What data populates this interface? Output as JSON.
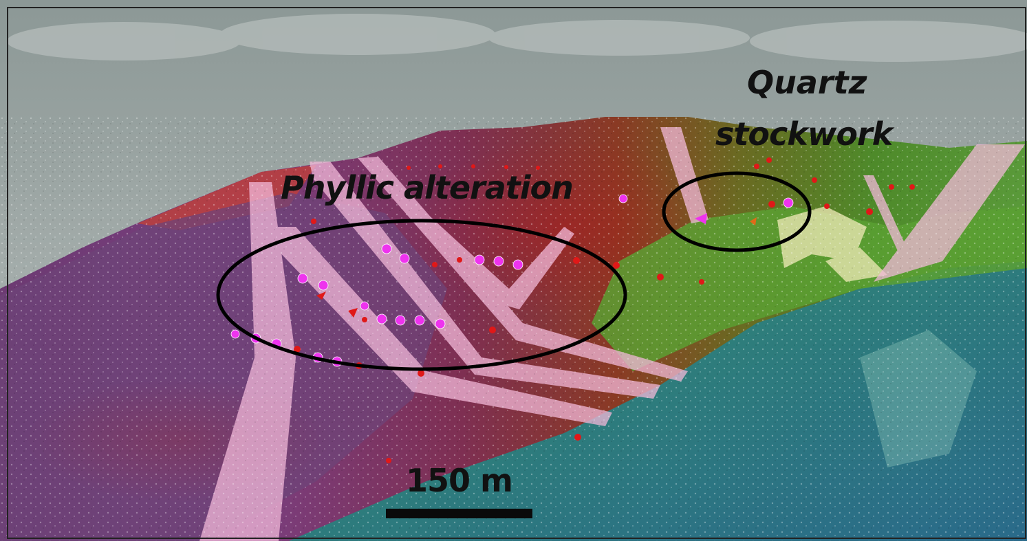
{
  "labels": {
    "phyllic": "Phyllic alteration",
    "quartz_line1": "Quartz",
    "quartz_line2": "stockwork"
  },
  "scale": {
    "text": "150 m"
  },
  "colors": {
    "sky": "#9aa4a2",
    "phyllic_zone": "#7a3a7e",
    "ridge": "#8b1e1e",
    "slope_green": "#5a9a2a",
    "valley_teal": "#2f7f86",
    "veins": "#f2b8d8",
    "sample_points_magenta": "#ee33ee",
    "sample_points_red": "#e01818",
    "ellipse_outline": "#000000",
    "frame": "#222222"
  },
  "icons": [
    "magenta-sample-point-icon",
    "red-sample-point-icon",
    "triangle-sample-marker-icon"
  ]
}
